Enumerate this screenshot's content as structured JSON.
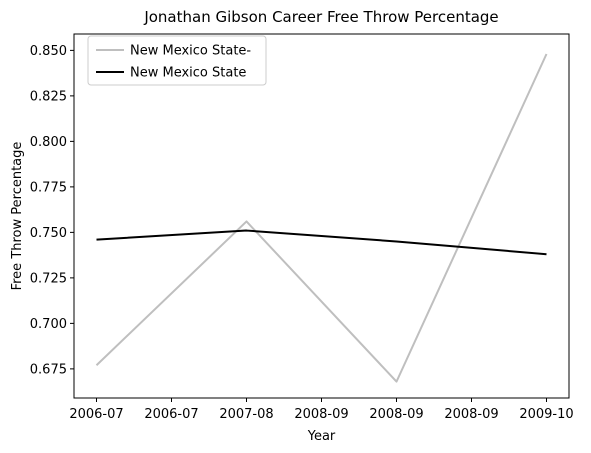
{
  "chart_data": {
    "type": "line",
    "title": "Jonathan Gibson  Career Free Throw Percentage",
    "xlabel": "Year",
    "ylabel": "Free Throw Percentage",
    "x_tick_labels": [
      "2006-07",
      "2006-07",
      "2007-08",
      "2008-09",
      "2008-09",
      "2008-09",
      "2009-10"
    ],
    "x_positions": [
      0,
      1,
      2,
      3
    ],
    "x_range": [
      -0.15,
      3.15
    ],
    "ylim": [
      0.659,
      0.859
    ],
    "y_ticks": [
      0.675,
      0.7,
      0.725,
      0.75,
      0.775,
      0.8,
      0.825,
      0.85
    ],
    "y_tick_labels": [
      "0.675",
      "0.700",
      "0.725",
      "0.750",
      "0.775",
      "0.800",
      "0.825",
      "0.850"
    ],
    "grid": false,
    "legend_position": "top-left",
    "series": [
      {
        "name": "New Mexico State-",
        "color": "#bfbfbf",
        "values": [
          0.677,
          0.756,
          0.668,
          0.848
        ]
      },
      {
        "name": "New Mexico State",
        "color": "#000000",
        "values": [
          0.746,
          0.751,
          0.745,
          0.738
        ]
      }
    ]
  }
}
